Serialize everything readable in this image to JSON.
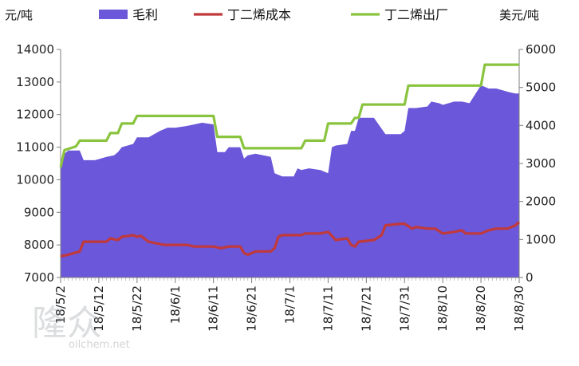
{
  "chart_data": {
    "type": "area",
    "left_unit": "元/吨",
    "right_unit": "美元/吨",
    "left_ylim": [
      7000,
      14000
    ],
    "left_ticks": [
      "7000",
      "8000",
      "9000",
      "10000",
      "11000",
      "12000",
      "13000",
      "14000"
    ],
    "right_ylim": [
      0,
      6000
    ],
    "right_ticks": [
      "0",
      "1000",
      "2000",
      "3000",
      "4000",
      "5000",
      "6000"
    ],
    "x_start": "2018-05-02",
    "x_end": "2018-08-30",
    "x_ticks": [
      "18/5/2",
      "18/5/12",
      "18/5/22",
      "18/6/1",
      "18/6/11",
      "18/6/21",
      "18/7/1",
      "18/7/11",
      "18/7/21",
      "18/7/31",
      "18/8/10",
      "18/8/20",
      "18/8/30"
    ],
    "grid": false,
    "legend_position": "top",
    "series": [
      {
        "name": "毛利",
        "axis": "left",
        "kind": "area",
        "color": "#6b57d9",
        "points": [
          [
            "2018-05-02",
            10300
          ],
          [
            "2018-05-03",
            10800
          ],
          [
            "2018-05-04",
            10900
          ],
          [
            "2018-05-07",
            10900
          ],
          [
            "2018-05-08",
            10600
          ],
          [
            "2018-05-11",
            10600
          ],
          [
            "2018-05-14",
            10700
          ],
          [
            "2018-05-16",
            10750
          ],
          [
            "2018-05-17",
            10850
          ],
          [
            "2018-05-18",
            11000
          ],
          [
            "2018-05-21",
            11100
          ],
          [
            "2018-05-22",
            11300
          ],
          [
            "2018-05-25",
            11300
          ],
          [
            "2018-05-28",
            11500
          ],
          [
            "2018-05-30",
            11600
          ],
          [
            "2018-06-01",
            11600
          ],
          [
            "2018-06-04",
            11650
          ],
          [
            "2018-06-06",
            11700
          ],
          [
            "2018-06-08",
            11750
          ],
          [
            "2018-06-11",
            11700
          ],
          [
            "2018-06-12",
            10850
          ],
          [
            "2018-06-14",
            10850
          ],
          [
            "2018-06-15",
            11000
          ],
          [
            "2018-06-18",
            11000
          ],
          [
            "2018-06-19",
            10650
          ],
          [
            "2018-06-20",
            10750
          ],
          [
            "2018-06-22",
            10800
          ],
          [
            "2018-06-26",
            10700
          ],
          [
            "2018-06-27",
            10200
          ],
          [
            "2018-06-29",
            10100
          ],
          [
            "2018-07-02",
            10100
          ],
          [
            "2018-07-03",
            10350
          ],
          [
            "2018-07-04",
            10300
          ],
          [
            "2018-07-06",
            10350
          ],
          [
            "2018-07-09",
            10300
          ],
          [
            "2018-07-10",
            10250
          ],
          [
            "2018-07-11",
            10200
          ],
          [
            "2018-07-12",
            11000
          ],
          [
            "2018-07-13",
            11050
          ],
          [
            "2018-07-16",
            11100
          ],
          [
            "2018-07-17",
            11500
          ],
          [
            "2018-07-18",
            11500
          ],
          [
            "2018-07-19",
            11900
          ],
          [
            "2018-07-23",
            11900
          ],
          [
            "2018-07-26",
            11400
          ],
          [
            "2018-07-30",
            11400
          ],
          [
            "2018-07-31",
            11500
          ],
          [
            "2018-08-01",
            12200
          ],
          [
            "2018-08-03",
            12200
          ],
          [
            "2018-08-06",
            12250
          ],
          [
            "2018-08-07",
            12400
          ],
          [
            "2018-08-09",
            12350
          ],
          [
            "2018-08-10",
            12300
          ],
          [
            "2018-08-13",
            12400
          ],
          [
            "2018-08-15",
            12400
          ],
          [
            "2018-08-17",
            12350
          ],
          [
            "2018-08-20",
            12900
          ],
          [
            "2018-08-22",
            12800
          ],
          [
            "2018-08-24",
            12800
          ],
          [
            "2018-08-27",
            12700
          ],
          [
            "2018-08-29",
            12650
          ],
          [
            "2018-08-30",
            12650
          ]
        ]
      },
      {
        "name": "丁二烯成本",
        "axis": "left",
        "kind": "line",
        "color": "#c0393b",
        "points": [
          [
            "2018-05-02",
            7650
          ],
          [
            "2018-05-04",
            7700
          ],
          [
            "2018-05-07",
            7800
          ],
          [
            "2018-05-08",
            8100
          ],
          [
            "2018-05-10",
            8100
          ],
          [
            "2018-05-14",
            8100
          ],
          [
            "2018-05-15",
            8200
          ],
          [
            "2018-05-17",
            8150
          ],
          [
            "2018-05-18",
            8250
          ],
          [
            "2018-05-21",
            8300
          ],
          [
            "2018-05-22",
            8250
          ],
          [
            "2018-05-23",
            8280
          ],
          [
            "2018-05-25",
            8100
          ],
          [
            "2018-05-29",
            8000
          ],
          [
            "2018-06-01",
            8000
          ],
          [
            "2018-06-04",
            8000
          ],
          [
            "2018-06-06",
            7950
          ],
          [
            "2018-06-08",
            7950
          ],
          [
            "2018-06-11",
            7950
          ],
          [
            "2018-06-13",
            7900
          ],
          [
            "2018-06-15",
            7950
          ],
          [
            "2018-06-18",
            7950
          ],
          [
            "2018-06-19",
            7750
          ],
          [
            "2018-06-20",
            7700
          ],
          [
            "2018-06-22",
            7800
          ],
          [
            "2018-06-26",
            7800
          ],
          [
            "2018-06-27",
            7900
          ],
          [
            "2018-06-28",
            8250
          ],
          [
            "2018-06-29",
            8300
          ],
          [
            "2018-07-04",
            8300
          ],
          [
            "2018-07-05",
            8350
          ],
          [
            "2018-07-09",
            8350
          ],
          [
            "2018-07-11",
            8400
          ],
          [
            "2018-07-13",
            8150
          ],
          [
            "2018-07-16",
            8200
          ],
          [
            "2018-07-17",
            8000
          ],
          [
            "2018-07-18",
            7950
          ],
          [
            "2018-07-19",
            8100
          ],
          [
            "2018-07-23",
            8150
          ],
          [
            "2018-07-25",
            8300
          ],
          [
            "2018-07-26",
            8600
          ],
          [
            "2018-07-30",
            8650
          ],
          [
            "2018-07-31",
            8650
          ],
          [
            "2018-08-02",
            8500
          ],
          [
            "2018-08-03",
            8550
          ],
          [
            "2018-08-06",
            8500
          ],
          [
            "2018-08-08",
            8500
          ],
          [
            "2018-08-10",
            8350
          ],
          [
            "2018-08-13",
            8400
          ],
          [
            "2018-08-15",
            8450
          ],
          [
            "2018-08-16",
            8350
          ],
          [
            "2018-08-20",
            8350
          ],
          [
            "2018-08-22",
            8450
          ],
          [
            "2018-08-24",
            8500
          ],
          [
            "2018-08-27",
            8500
          ],
          [
            "2018-08-29",
            8600
          ],
          [
            "2018-08-30",
            8700
          ]
        ]
      },
      {
        "name": "丁二烯出厂",
        "axis": "right",
        "kind": "line",
        "color": "#8ac43f",
        "points": [
          [
            "2018-05-02",
            2900
          ],
          [
            "2018-05-03",
            3350
          ],
          [
            "2018-05-06",
            3450
          ],
          [
            "2018-05-07",
            3600
          ],
          [
            "2018-05-14",
            3600
          ],
          [
            "2018-05-15",
            3800
          ],
          [
            "2018-05-17",
            3800
          ],
          [
            "2018-05-18",
            4050
          ],
          [
            "2018-05-21",
            4050
          ],
          [
            "2018-05-22",
            4250
          ],
          [
            "2018-06-11",
            4250
          ],
          [
            "2018-06-12",
            3700
          ],
          [
            "2018-06-18",
            3700
          ],
          [
            "2018-06-19",
            3400
          ],
          [
            "2018-06-30",
            3400
          ],
          [
            "2018-07-01",
            3400
          ],
          [
            "2018-07-04",
            3400
          ],
          [
            "2018-07-05",
            3600
          ],
          [
            "2018-07-10",
            3600
          ],
          [
            "2018-07-11",
            4050
          ],
          [
            "2018-07-17",
            4050
          ],
          [
            "2018-07-18",
            4200
          ],
          [
            "2018-07-19",
            4200
          ],
          [
            "2018-07-20",
            4550
          ],
          [
            "2018-07-31",
            4550
          ],
          [
            "2018-08-01",
            5050
          ],
          [
            "2018-08-20",
            5050
          ],
          [
            "2018-08-21",
            5600
          ],
          [
            "2018-08-30",
            5600
          ]
        ]
      }
    ]
  },
  "legend": [
    {
      "name": "毛利",
      "color": "#6b57d9",
      "kind": "swatch"
    },
    {
      "name": "丁二烯成本",
      "color": "#c0393b",
      "kind": "line"
    },
    {
      "name": "丁二烯出厂",
      "color": "#8ac43f",
      "kind": "line"
    }
  ],
  "watermark": {
    "text": "oilchem.net",
    "logo_text": "隆众"
  }
}
